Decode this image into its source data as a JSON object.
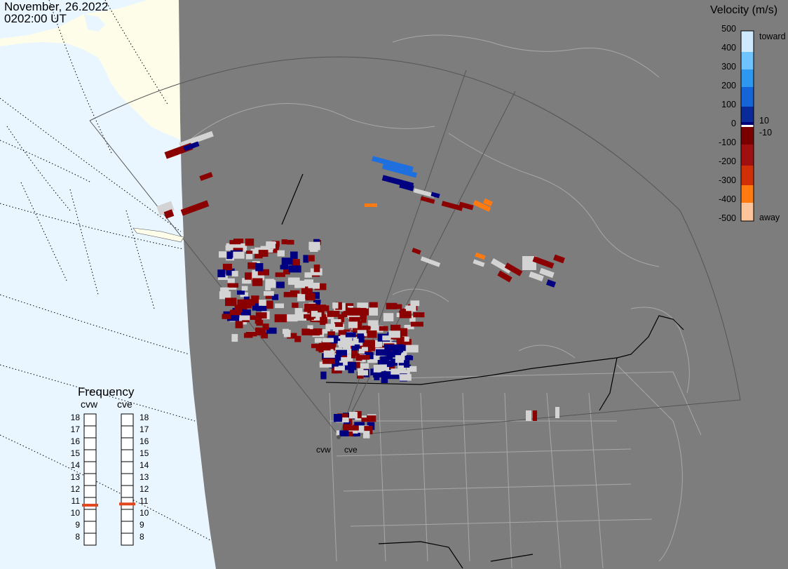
{
  "header": {
    "date": "November, 26.2022",
    "time": "0202:00 UT"
  },
  "legend": {
    "title": "Velocity (m/s)",
    "ticks": [
      "500",
      "400",
      "300",
      "200",
      "100",
      "0",
      "-100",
      "-200",
      "-300",
      "-400",
      "-500"
    ],
    "near_zero_pos": "10",
    "near_zero_neg": "-10",
    "toward_label": "toward",
    "away_label": "away",
    "colors": [
      "#cfeaff",
      "#6fc3ff",
      "#2e98f0",
      "#1565d8",
      "#0a2a99",
      "#00007a",
      "#ffffff",
      "#7a0000",
      "#a01010",
      "#d03008",
      "#ff7a10",
      "#ffc59a"
    ]
  },
  "frequency": {
    "title": "Frequency",
    "radars": [
      {
        "code": "cvw",
        "value_mhz": 10.85
      },
      {
        "code": "cve",
        "value_mhz": 10.95
      }
    ],
    "scale": [
      "18",
      "17",
      "16",
      "15",
      "14",
      "13",
      "12",
      "11",
      "10",
      "9",
      "8"
    ]
  },
  "sites": [
    {
      "code": "cvw"
    },
    {
      "code": "cve"
    }
  ],
  "map_colors": {
    "land": "#7d7d7d",
    "ocean_outside": "#e9f6ff",
    "land_outside": "#fdfdea",
    "borders": "#9a9a9a",
    "country_border": "#000000"
  },
  "echo_colors": {
    "ground_scatter": "#d3d3d3",
    "dark_red": "#8b0000",
    "navy": "#000080",
    "blue": "#1e6fe0",
    "orange": "#ff7a10"
  }
}
